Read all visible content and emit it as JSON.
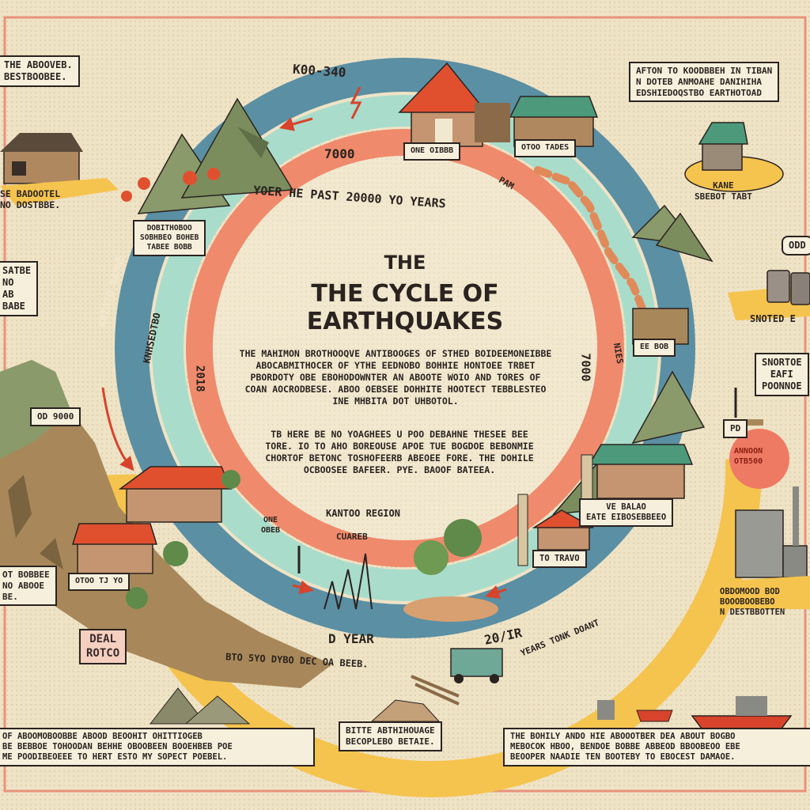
{
  "title": {
    "line1": "THE",
    "line2": "THE CYCLE OF\nEARTHQUAKES"
  },
  "ring_labels": {
    "top": "K00-340",
    "inner_arc": "YOER HE PAST 20000 YO YEARS",
    "year_7000_top": "7000",
    "year_7000_right": "7000",
    "year_2018": "2018",
    "year_label": "D YEAR",
    "year_20ir": "20/IR",
    "pam": "PAM",
    "left_arc_1": "RRIATO YANNE",
    "left_arc_2": "KNHSEDTBO",
    "right_arc": "NIES",
    "bottom_arc": "BTO 5YO DYBO DEC OA BEEB.",
    "bottom_right_arc": "YEARS TONK DOANT"
  },
  "body": {
    "paragraph1": "THE MAHIMON BROTHOOQVE ANTIBOOGES OF STHED BOIDEEMONEIBBE ABOCABMITHOCER OF YTHE EEDNOBO BOHHIE HONTOEE TRBET PBORDOTY OBE EBOHODOWNTER AN ABOOTE WOIO AND TORES OF COAN AOCRODBESE. ABOO OEBSEE DOHHITE HOOTECT TEBBLESTEO INE MHBITA DOT UHBOTOL.",
    "paragraph2": "TB HERE BE NO YOAGHEES U POO DEBAHNE THESEE BEE TORE. IO TO AHO BOREOUSE APOE TUE BOGDOE BEBONMIE CHORTOF BETONC TOSHOFEERB ABEOEE FORE. THE DOHILE OCBOOSEE BAFEER. PYE. BAOOF BATEEA.",
    "region": "KANTOO REGION"
  },
  "callouts": {
    "top_left": "THE ABOOVEB.\nBESTBOOBEE.",
    "left_yellow": "SE BADOOTEL\nNO DOSTBBE.",
    "left_mid": "SATBE\nNO\nAB\nBABE",
    "left_od": "OD 9000",
    "left_bottom": "OT BOBBEE\nNO ABOOE\nBE.",
    "top_right": "AFTON TO KOODBBEH IN TIBAN\nN DOTEB ANMOAHE DANIHIHA\nEDSHIEDOQSTBO EARTHOTOAD",
    "kane": "KANE\nSBEBOT TABT",
    "odd": "ODD",
    "snoted": "SNOTED E",
    "snortoe": "SNORTOE\nEAFI\nPOONNOE",
    "pd": "PD",
    "red_blob": "ANNOON\nOTB500",
    "right_bottom": "OBDOMOOD BOD\nBOOOBOOBEBO\nN DESTBBOTTEN",
    "deal_stamp": "DEAL\nROTCO",
    "bottom_left_text": "OF ABOOMOBOOBBE ABOOD BEOOHIT OHITTIOGEB\nBE BEBBOE TOHOODAN BEHHE OBOOBEEN BOOEHBEB POE\nME POODIBEOEEE TO HERT ESTO MY SOPECT POEBEL.",
    "bottom_mid_text": "BITTE ABTHIHOUAGE\nBECOPLEBO BETAIE.",
    "bottom_right_text": "THE BOHILY ANDO HIE ABOOOTBER DEA ABOUT BOGBO\nMEBOCOK HBOO, BENDOE BOBBE ABBEOD BBOOBEOO EBE\nBEOOPER NAADIE TEN BOOTEBY TO EBOCEST DAMAOE."
  },
  "house_tags": {
    "top_left_house": "DOBITHOBOO\nSOBHBEO BOHEB\nTABEE BOBB",
    "top_center_1": "ONE OIBBB",
    "top_center_2": "OTOO TADES",
    "right_mid_house": "EE BOB",
    "right_lower": "VE BALAO\nEATE EIBOSEBBEEO",
    "right_lower_2": "TO TRAVO",
    "left_lower": "OTOO TJ YO",
    "chain": "CUAREB",
    "one_one": "ONE\nOBEB"
  },
  "colors": {
    "background": "#efe3c6",
    "teal_ring": "#5b8fa3",
    "mint_ring": "#a9dccb",
    "coral_ring": "#ef8a6c",
    "yellow_ring": "#f5c44f",
    "ink": "#2a2320",
    "roof_red": "#e0502f",
    "roof_green": "#4c9a7b",
    "mountain": "#8a9a6a"
  }
}
